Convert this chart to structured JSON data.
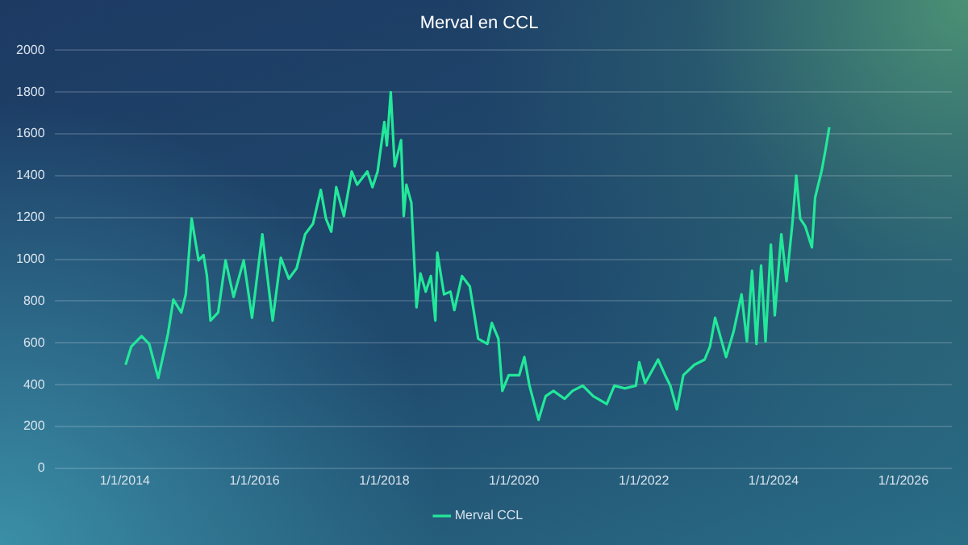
{
  "chart_data": {
    "type": "line",
    "title": "Merval en CCL",
    "x": [
      "2014-01-05",
      "2014-02-06",
      "2014-04-05",
      "2014-05-18",
      "2014-07-08",
      "2014-09-01",
      "2014-10-01",
      "2014-11-15",
      "2014-12-10",
      "2015-01-12",
      "2015-02-20",
      "2015-03-20",
      "2015-04-08",
      "2015-04-28",
      "2015-06-10",
      "2015-07-22",
      "2015-09-05",
      "2015-11-01",
      "2015-12-18",
      "2016-02-14",
      "2016-04-12",
      "2016-05-28",
      "2016-07-12",
      "2016-08-25",
      "2016-10-12",
      "2016-11-25",
      "2017-01-08",
      "2017-02-06",
      "2017-03-08",
      "2017-04-05",
      "2017-05-18",
      "2017-07-01",
      "2017-08-01",
      "2017-09-27",
      "2017-10-26",
      "2017-11-24",
      "2018-01-01",
      "2018-01-15",
      "2018-02-06",
      "2018-02-28",
      "2018-04-05",
      "2018-04-20",
      "2018-05-05",
      "2018-06-02",
      "2018-07-01",
      "2018-07-23",
      "2018-08-22",
      "2018-09-20",
      "2018-10-15",
      "2018-10-26",
      "2018-12-03",
      "2019-01-08",
      "2019-01-30",
      "2019-03-14",
      "2019-04-27",
      "2019-06-13",
      "2019-08-04",
      "2019-08-29",
      "2019-10-05",
      "2019-10-27",
      "2019-12-02",
      "2020-01-30",
      "2020-02-28",
      "2020-03-28",
      "2020-05-18",
      "2020-06-27",
      "2020-08-10",
      "2020-10-12",
      "2020-11-25",
      "2021-01-22",
      "2021-03-22",
      "2021-06-06",
      "2021-07-19",
      "2021-09-16",
      "2021-11-17",
      "2021-12-06",
      "2022-01-08",
      "2022-03-22",
      "2022-05-01",
      "2022-05-30",
      "2022-07-06",
      "2022-08-11",
      "2022-10-12",
      "2022-12-09",
      "2023-01-08",
      "2023-02-06",
      "2023-04-09",
      "2023-05-22",
      "2023-07-05",
      "2023-08-04",
      "2023-09-02",
      "2023-09-27",
      "2023-10-23",
      "2023-11-17",
      "2023-12-17",
      "2024-01-08",
      "2024-02-14",
      "2024-03-14",
      "2024-04-16",
      "2024-05-08",
      "2024-05-30",
      "2024-06-28",
      "2024-08-04",
      "2024-08-22",
      "2024-09-27",
      "2024-10-19",
      "2024-11-10"
    ],
    "series": [
      {
        "name": "Merval CCL",
        "color": "#22e89a",
        "values": [
          495,
          582,
          632,
          595,
          432,
          645,
          807,
          745,
          832,
          1195,
          995,
          1020,
          920,
          707,
          745,
          995,
          820,
          995,
          720,
          1120,
          707,
          1007,
          907,
          957,
          1120,
          1170,
          1332,
          1195,
          1132,
          1345,
          1207,
          1420,
          1357,
          1420,
          1345,
          1420,
          1657,
          1545,
          1800,
          1445,
          1570,
          1207,
          1357,
          1270,
          770,
          932,
          845,
          920,
          707,
          1032,
          832,
          845,
          757,
          920,
          870,
          620,
          595,
          695,
          620,
          370,
          445,
          445,
          532,
          395,
          232,
          345,
          370,
          332,
          370,
          395,
          345,
          307,
          395,
          382,
          395,
          507,
          407,
          520,
          445,
          395,
          282,
          445,
          495,
          520,
          582,
          720,
          532,
          657,
          832,
          607,
          945,
          595,
          970,
          607,
          1070,
          732,
          1120,
          895,
          1170,
          1400,
          1195,
          1157,
          1057,
          1295,
          1420,
          1520,
          1632
        ]
      }
    ],
    "xlim": [
      "2012-12-01",
      "2026-10-01"
    ],
    "xticks": [
      {
        "value": "2014-01-01",
        "label": "1/1/2014"
      },
      {
        "value": "2016-01-01",
        "label": "1/1/2016"
      },
      {
        "value": "2018-01-01",
        "label": "1/1/2018"
      },
      {
        "value": "2020-01-01",
        "label": "1/1/2020"
      },
      {
        "value": "2022-01-01",
        "label": "1/1/2022"
      },
      {
        "value": "2024-01-01",
        "label": "1/1/2024"
      },
      {
        "value": "2026-01-01",
        "label": "1/1/2026"
      }
    ],
    "ylim": [
      0,
      2000
    ],
    "yticks": [
      0,
      200,
      400,
      600,
      800,
      1000,
      1200,
      1400,
      1600,
      1800,
      2000
    ],
    "grid": "y",
    "legend": "bottom",
    "marker": "none",
    "line_style": "solid"
  }
}
